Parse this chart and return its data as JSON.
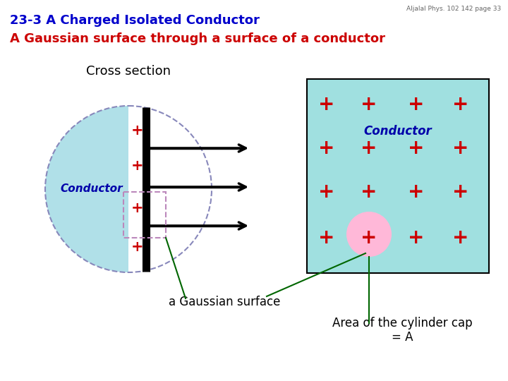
{
  "bg_color": "#ffffff",
  "title1": "23-3 A Charged Isolated Conductor",
  "title2": "A Gaussian surface through a surface of a conductor",
  "title1_color": "#0000cc",
  "title2_color": "#cc0000",
  "watermark": "Aljalal Phys. 102 142 page 33",
  "cross_section_label": "Cross section",
  "conductor_label_left": "Conductor",
  "conductor_label_right": "Conductor",
  "gaussian_surface_label": "a Gaussian surface",
  "area_label": "Area of the cylinder cap\n= A",
  "light_blue": "#b0e0e8",
  "cyan_bg": "#a0e0e0",
  "pink": "#ffb8d8",
  "dashed_circle_color": "#8888bb",
  "dashed_rect_color": "#bb88bb",
  "plus_color": "#cc0000",
  "green_line": "#006600",
  "wall_color": "#000000"
}
